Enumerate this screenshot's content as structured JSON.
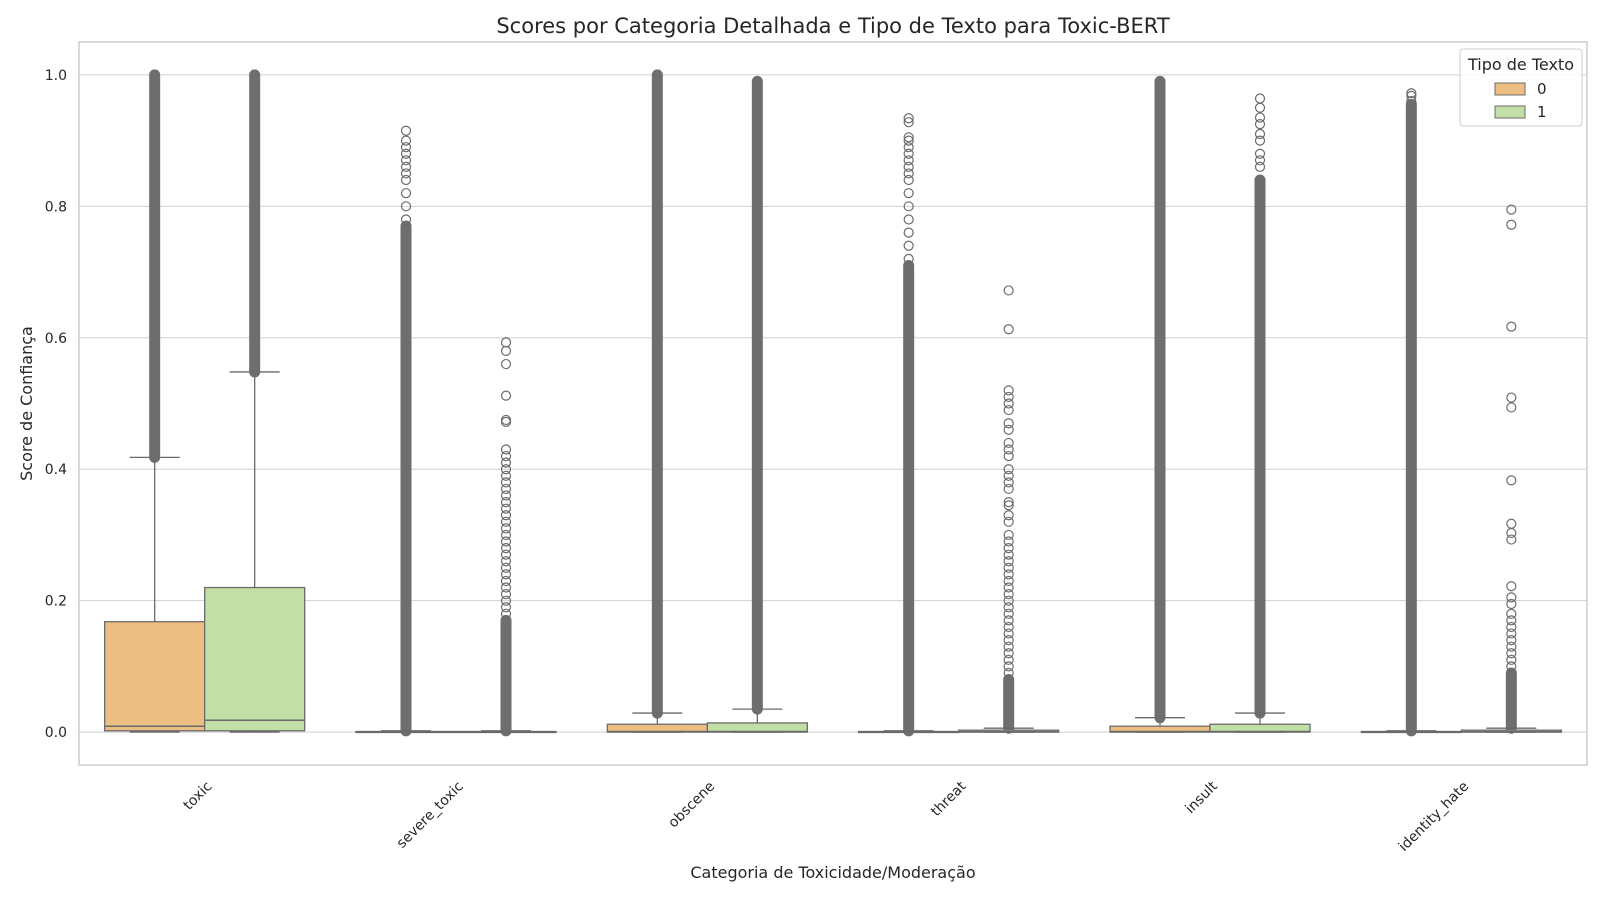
{
  "chart_data": {
    "type": "box",
    "title": "Scores por Categoria Detalhada e Tipo de Texto para Toxic-BERT",
    "xlabel": "Categoria de Toxicidade/Moderação",
    "ylabel": "Score de Confiança",
    "ylim": [
      -0.05,
      1.05
    ],
    "yticks": [
      "0.0",
      "0.2",
      "0.4",
      "0.6",
      "0.8",
      "1.0"
    ],
    "grid": true,
    "legend": {
      "title": "Tipo de Texto",
      "placement": "top-right"
    },
    "categories": [
      "toxic",
      "severe_toxic",
      "obscene",
      "threat",
      "insult",
      "identity_hate"
    ],
    "series": [
      {
        "name": "0",
        "color": "#edbe82",
        "boxes": [
          {
            "q1": 0.002,
            "median": 0.009,
            "q3": 0.168,
            "whisker_low": 0.0,
            "whisker_high": 0.418,
            "outliers_dense": [
              0.418,
              1.0
            ],
            "outliers_sparse": []
          },
          {
            "q1": 0.0,
            "median": 0.0003,
            "q3": 0.001,
            "whisker_low": 0.0,
            "whisker_high": 0.002,
            "outliers_dense": [
              0.002,
              0.77
            ],
            "outliers_sparse": [
              0.78,
              0.8,
              0.82,
              0.84,
              0.85,
              0.86,
              0.87,
              0.88,
              0.89,
              0.9,
              0.915
            ]
          },
          {
            "q1": 0.0,
            "median": 0.001,
            "q3": 0.012,
            "whisker_low": 0.0,
            "whisker_high": 0.029,
            "outliers_dense": [
              0.029,
              1.0
            ],
            "outliers_sparse": []
          },
          {
            "q1": 0.0,
            "median": 0.0003,
            "q3": 0.001,
            "whisker_low": 0.0,
            "whisker_high": 0.002,
            "outliers_dense": [
              0.002,
              0.71
            ],
            "outliers_sparse": [
              0.72,
              0.74,
              0.76,
              0.78,
              0.8,
              0.82,
              0.84,
              0.85,
              0.86,
              0.87,
              0.88,
              0.89,
              0.9,
              0.905,
              0.928,
              0.934
            ]
          },
          {
            "q1": 0.0,
            "median": 0.001,
            "q3": 0.009,
            "whisker_low": 0.0,
            "whisker_high": 0.022,
            "outliers_dense": [
              0.022,
              0.99
            ],
            "outliers_sparse": []
          },
          {
            "q1": 0.0,
            "median": 0.0003,
            "q3": 0.001,
            "whisker_low": 0.0,
            "whisker_high": 0.002,
            "outliers_dense": [
              0.002,
              0.955
            ],
            "outliers_sparse": [
              0.96,
              0.968,
              0.972
            ]
          }
        ]
      },
      {
        "name": "1",
        "color": "#c1dfa6",
        "boxes": [
          {
            "q1": 0.002,
            "median": 0.018,
            "q3": 0.22,
            "whisker_low": 0.0,
            "whisker_high": 0.548,
            "outliers_dense": [
              0.548,
              1.0
            ],
            "outliers_sparse": []
          },
          {
            "q1": 0.0,
            "median": 0.0003,
            "q3": 0.001,
            "whisker_low": 0.0,
            "whisker_high": 0.002,
            "outliers_dense": [
              0.002,
              0.17
            ],
            "outliers_sparse": [
              0.18,
              0.19,
              0.2,
              0.21,
              0.22,
              0.23,
              0.24,
              0.25,
              0.26,
              0.27,
              0.28,
              0.29,
              0.3,
              0.31,
              0.32,
              0.33,
              0.34,
              0.35,
              0.36,
              0.37,
              0.38,
              0.39,
              0.4,
              0.41,
              0.42,
              0.43,
              0.472,
              0.475,
              0.512,
              0.56,
              0.58,
              0.593
            ]
          },
          {
            "q1": 0.0,
            "median": 0.001,
            "q3": 0.014,
            "whisker_low": 0.0,
            "whisker_high": 0.035,
            "outliers_dense": [
              0.035,
              0.99
            ],
            "outliers_sparse": []
          },
          {
            "q1": 0.0,
            "median": 0.0005,
            "q3": 0.003,
            "whisker_low": 0.0,
            "whisker_high": 0.006,
            "outliers_dense": [
              0.006,
              0.08
            ],
            "outliers_sparse": [
              0.09,
              0.1,
              0.11,
              0.12,
              0.13,
              0.14,
              0.15,
              0.16,
              0.17,
              0.18,
              0.19,
              0.2,
              0.21,
              0.22,
              0.23,
              0.24,
              0.25,
              0.26,
              0.27,
              0.28,
              0.29,
              0.3,
              0.32,
              0.33,
              0.345,
              0.35,
              0.37,
              0.38,
              0.39,
              0.4,
              0.42,
              0.43,
              0.44,
              0.46,
              0.47,
              0.49,
              0.5,
              0.51,
              0.52,
              0.613,
              0.672
            ]
          },
          {
            "q1": 0.0,
            "median": 0.001,
            "q3": 0.012,
            "whisker_low": 0.0,
            "whisker_high": 0.029,
            "outliers_dense": [
              0.029,
              0.84
            ],
            "outliers_sparse": [
              0.86,
              0.87,
              0.88,
              0.9,
              0.91,
              0.925,
              0.935,
              0.95,
              0.964
            ]
          },
          {
            "q1": 0.0,
            "median": 0.0005,
            "q3": 0.003,
            "whisker_low": 0.0,
            "whisker_high": 0.006,
            "outliers_dense": [
              0.006,
              0.09
            ],
            "outliers_sparse": [
              0.1,
              0.11,
              0.12,
              0.13,
              0.14,
              0.15,
              0.16,
              0.17,
              0.18,
              0.195,
              0.205,
              0.222,
              0.293,
              0.303,
              0.317,
              0.383,
              0.494,
              0.509,
              0.617,
              0.772,
              0.795
            ]
          }
        ]
      }
    ]
  }
}
